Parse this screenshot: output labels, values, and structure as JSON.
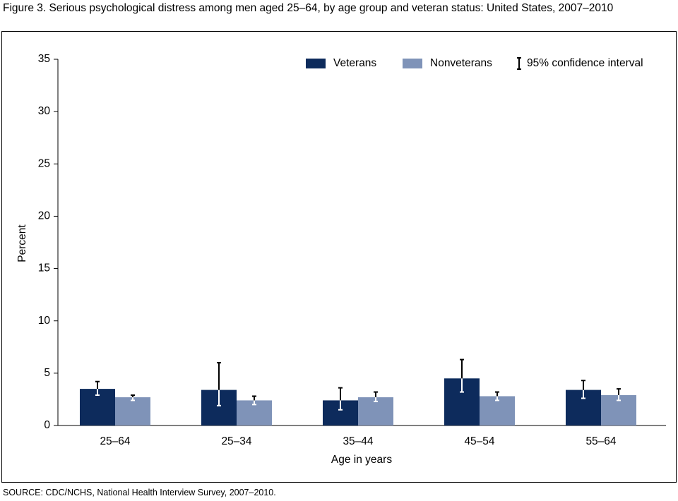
{
  "chart_data": {
    "type": "bar",
    "title": "Figure 3. Serious psychological distress among men aged 25–64, by age group and veteran status:  United States, 2007–2010",
    "source": "SOURCE: CDC/NCHS, National Health Interview Survey, 2007–2010.",
    "x_label": "Age in years",
    "y_label": "Percent",
    "categories": [
      "25–64",
      "25–34",
      "35–44",
      "45–54",
      "55–64"
    ],
    "series": [
      {
        "name": "Veterans",
        "color": "#0d2b5c",
        "values": [
          3.5,
          3.4,
          2.4,
          4.5,
          3.4
        ],
        "lower": [
          2.9,
          1.9,
          1.5,
          3.2,
          2.6
        ],
        "upper": [
          4.2,
          6.0,
          3.6,
          6.3,
          4.3
        ]
      },
      {
        "name": "Nonveterans",
        "color": "#7f93b8",
        "values": [
          2.7,
          2.4,
          2.7,
          2.8,
          2.9
        ],
        "lower": [
          2.4,
          2.0,
          2.3,
          2.4,
          2.4
        ],
        "upper": [
          2.9,
          2.8,
          3.2,
          3.2,
          3.5
        ]
      }
    ],
    "ci_label": "95% confidence interval",
    "ylim": [
      0,
      35
    ],
    "yticks": [
      0,
      5,
      10,
      15,
      20,
      25,
      30,
      35
    ],
    "legend": "upper right",
    "grid": false
  }
}
